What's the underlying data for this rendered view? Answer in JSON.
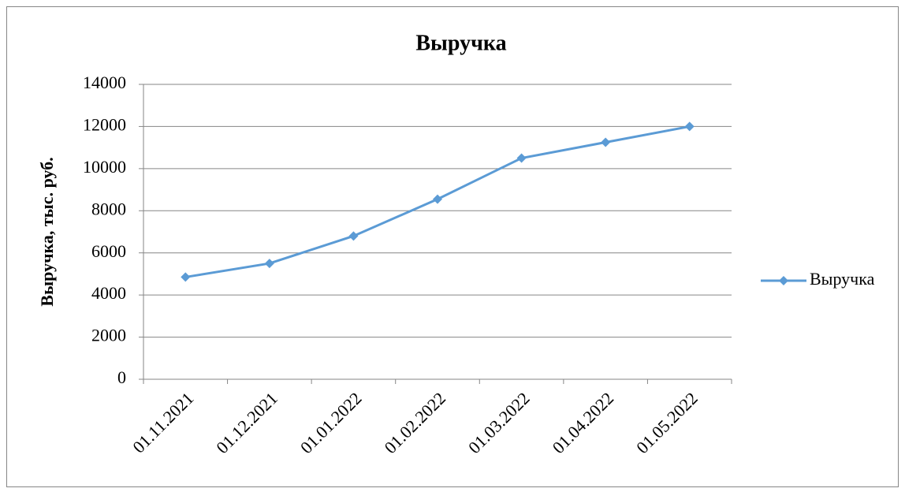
{
  "chart_data": {
    "type": "line",
    "title": "Выручка",
    "y_label": "Выручка, тыс. руб.",
    "categories": [
      "01.11.2021",
      "01.12.2021",
      "01.01.2022",
      "01.02.2022",
      "01.03.2022",
      "01.04.2022",
      "01.05.2022"
    ],
    "series": [
      {
        "name": "Выручка",
        "color": "#5b9bd5",
        "values": [
          4850,
          5500,
          6800,
          8550,
          10500,
          11250,
          12000
        ]
      }
    ],
    "ylim": [
      0,
      14000
    ],
    "yticks": [
      0,
      2000,
      4000,
      6000,
      8000,
      10000,
      12000,
      14000
    ],
    "grid": true,
    "legend": "right"
  }
}
